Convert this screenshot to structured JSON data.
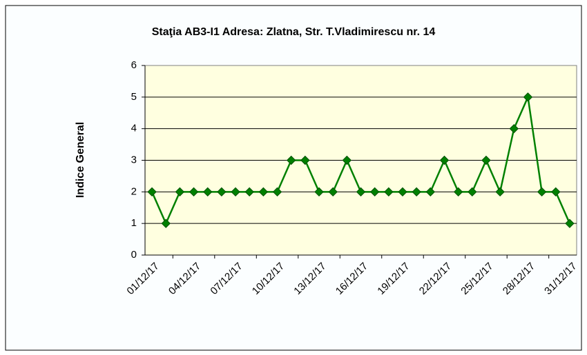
{
  "chart_data": {
    "type": "line",
    "title": "Staţia AB3-I1 Adresa: Zlatna, Str. T.Vladimirescu nr. 14",
    "y_label": "Indice General",
    "categories": [
      "01/12/17",
      null,
      null,
      "04/12/17",
      null,
      null,
      "07/12/17",
      null,
      null,
      "10/12/17",
      null,
      null,
      "13/12/17",
      null,
      null,
      "16/12/17",
      null,
      null,
      "19/12/17",
      null,
      null,
      "22/12/17",
      null,
      null,
      "25/12/17",
      null,
      null,
      "28/12/17",
      null,
      null,
      "31/12/17"
    ],
    "values": [
      2,
      1,
      2,
      2,
      2,
      2,
      2,
      2,
      2,
      2,
      3,
      3,
      2,
      2,
      3,
      2,
      2,
      2,
      2,
      2,
      2,
      3,
      2,
      2,
      3,
      2,
      4,
      5,
      2,
      2,
      1
    ],
    "color": "#008000",
    "ylim": [
      0,
      6
    ],
    "yticks": [
      0,
      1,
      2,
      3,
      4,
      5,
      6
    ],
    "grid": true
  }
}
